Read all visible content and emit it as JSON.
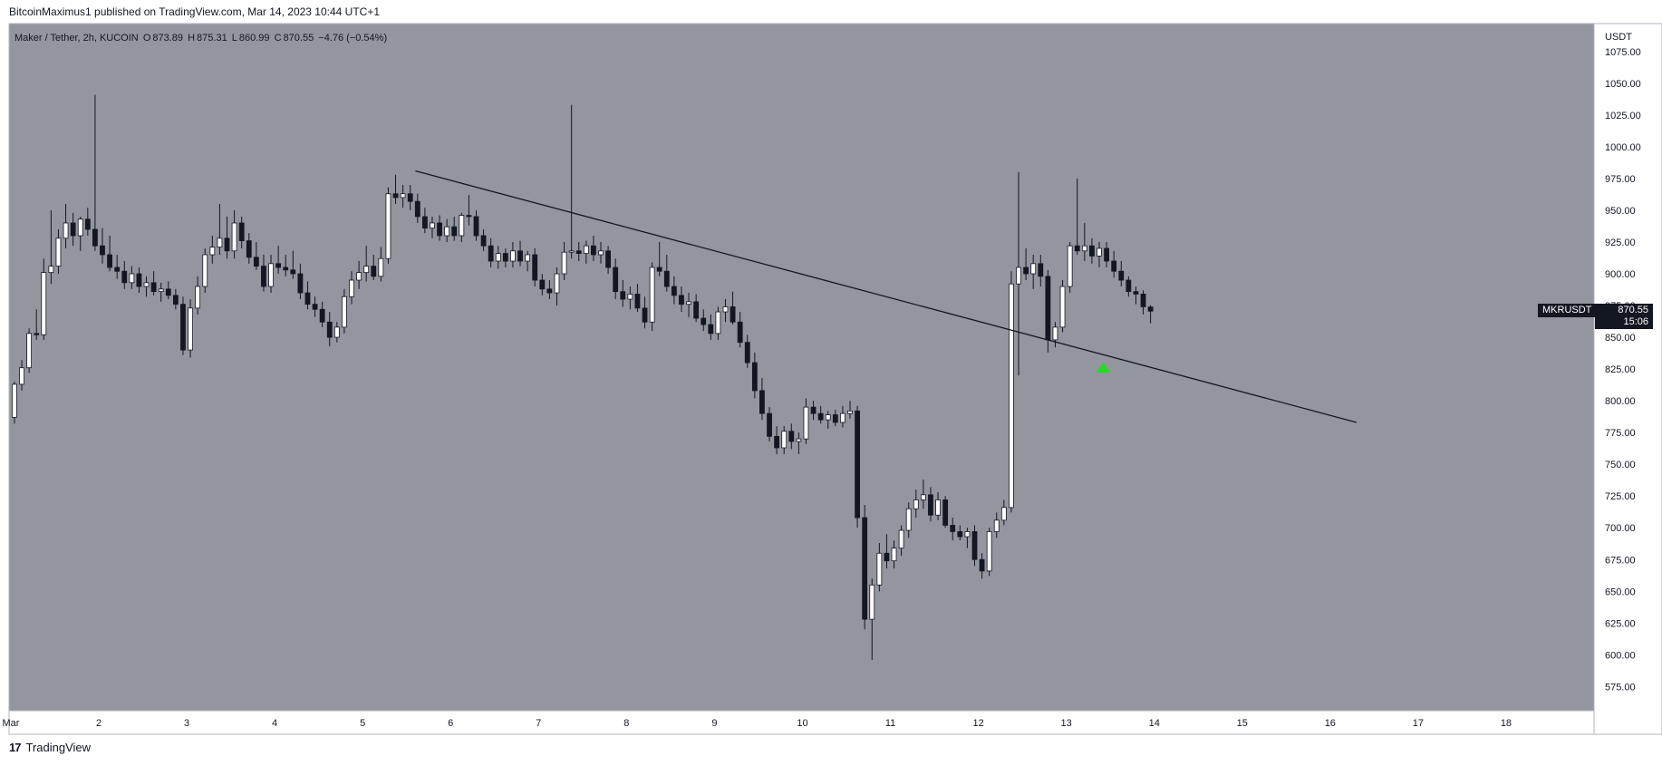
{
  "header": {
    "text": "BitcoinMaximus1 published on TradingView.com, Mar 14, 2023 10:44 UTC+1"
  },
  "footer": {
    "logo": "17",
    "brand": "TradingView"
  },
  "legend": {
    "symbol": "Maker / Tether, 2h, KUCOIN",
    "o_key": "O",
    "o_val": "873.89",
    "h_key": "H",
    "h_val": "875.31",
    "l_key": "L",
    "l_val": "860.99",
    "c_key": "C",
    "c_val": "870.55",
    "change": "−4.76 (−0.54%)"
  },
  "price_tag": {
    "symbol": "MKRUSDT",
    "price": "870.55",
    "countdown": "15:06"
  },
  "colors": {
    "pane_bg": "#93959f",
    "up_body": "#ffffff",
    "down_body": "#131722",
    "wick": "#131722",
    "trendline": "#131722",
    "arrow": "#22dd22",
    "axis_bg": "#ffffff",
    "axis_text": "#131722"
  },
  "chart_data": {
    "type": "candlestick",
    "currency": "USDT",
    "x_unit": "day of March 2023 (2h candles)",
    "xlim": [
      0.98,
      19.0
    ],
    "ylim": [
      556,
      1097
    ],
    "x_ticks": [
      {
        "x": 1,
        "label": "Mar"
      },
      {
        "x": 2,
        "label": "2"
      },
      {
        "x": 3,
        "label": "3"
      },
      {
        "x": 4,
        "label": "4"
      },
      {
        "x": 5,
        "label": "5"
      },
      {
        "x": 6,
        "label": "6"
      },
      {
        "x": 7,
        "label": "7"
      },
      {
        "x": 8,
        "label": "8"
      },
      {
        "x": 9,
        "label": "9"
      },
      {
        "x": 10,
        "label": "10"
      },
      {
        "x": 11,
        "label": "11"
      },
      {
        "x": 12,
        "label": "12"
      },
      {
        "x": 13,
        "label": "13"
      },
      {
        "x": 14,
        "label": "14"
      },
      {
        "x": 15,
        "label": "15"
      },
      {
        "x": 16,
        "label": "16"
      },
      {
        "x": 17,
        "label": "17"
      },
      {
        "x": 18,
        "label": "18"
      }
    ],
    "y_ticks": [
      "1075.00",
      "1050.00",
      "1025.00",
      "1000.00",
      "975.00",
      "950.00",
      "925.00",
      "900.00",
      "875.00",
      "850.00",
      "825.00",
      "800.00",
      "775.00",
      "750.00",
      "725.00",
      "700.00",
      "675.00",
      "650.00",
      "625.00",
      "600.00",
      "575.00"
    ],
    "y_tick_values": [
      1075,
      1050,
      1025,
      1000,
      975,
      950,
      925,
      900,
      875,
      850,
      825,
      800,
      775,
      750,
      725,
      700,
      675,
      650,
      625,
      600,
      575
    ],
    "candles": [
      {
        "o": 787,
        "h": 815,
        "l": 782,
        "c": 813
      },
      {
        "o": 813,
        "h": 832,
        "l": 808,
        "c": 826
      },
      {
        "o": 826,
        "h": 857,
        "l": 822,
        "c": 853
      },
      {
        "o": 853,
        "h": 872,
        "l": 848,
        "c": 852
      },
      {
        "o": 852,
        "h": 912,
        "l": 848,
        "c": 901
      },
      {
        "o": 901,
        "h": 950,
        "l": 892,
        "c": 906
      },
      {
        "o": 906,
        "h": 935,
        "l": 900,
        "c": 928
      },
      {
        "o": 928,
        "h": 955,
        "l": 920,
        "c": 940
      },
      {
        "o": 940,
        "h": 948,
        "l": 922,
        "c": 930
      },
      {
        "o": 930,
        "h": 945,
        "l": 918,
        "c": 943
      },
      {
        "o": 943,
        "h": 952,
        "l": 930,
        "c": 935
      },
      {
        "o": 935,
        "h": 1041,
        "l": 918,
        "c": 922
      },
      {
        "o": 922,
        "h": 936,
        "l": 908,
        "c": 915
      },
      {
        "o": 915,
        "h": 930,
        "l": 902,
        "c": 905
      },
      {
        "o": 905,
        "h": 915,
        "l": 896,
        "c": 902
      },
      {
        "o": 902,
        "h": 910,
        "l": 888,
        "c": 893
      },
      {
        "o": 893,
        "h": 906,
        "l": 888,
        "c": 900
      },
      {
        "o": 900,
        "h": 905,
        "l": 885,
        "c": 890
      },
      {
        "o": 890,
        "h": 898,
        "l": 882,
        "c": 893
      },
      {
        "o": 893,
        "h": 902,
        "l": 883,
        "c": 886
      },
      {
        "o": 886,
        "h": 893,
        "l": 878,
        "c": 888
      },
      {
        "o": 888,
        "h": 894,
        "l": 880,
        "c": 883
      },
      {
        "o": 883,
        "h": 888,
        "l": 872,
        "c": 876
      },
      {
        "o": 876,
        "h": 882,
        "l": 836,
        "c": 840
      },
      {
        "o": 840,
        "h": 880,
        "l": 834,
        "c": 873
      },
      {
        "o": 873,
        "h": 898,
        "l": 868,
        "c": 890
      },
      {
        "o": 890,
        "h": 920,
        "l": 885,
        "c": 915
      },
      {
        "o": 915,
        "h": 930,
        "l": 908,
        "c": 921
      },
      {
        "o": 921,
        "h": 955,
        "l": 915,
        "c": 928
      },
      {
        "o": 928,
        "h": 945,
        "l": 912,
        "c": 918
      },
      {
        "o": 918,
        "h": 950,
        "l": 912,
        "c": 940
      },
      {
        "o": 940,
        "h": 945,
        "l": 920,
        "c": 926
      },
      {
        "o": 926,
        "h": 932,
        "l": 908,
        "c": 913
      },
      {
        "o": 913,
        "h": 925,
        "l": 903,
        "c": 906
      },
      {
        "o": 906,
        "h": 915,
        "l": 886,
        "c": 890
      },
      {
        "o": 890,
        "h": 915,
        "l": 885,
        "c": 908
      },
      {
        "o": 908,
        "h": 922,
        "l": 900,
        "c": 905
      },
      {
        "o": 905,
        "h": 915,
        "l": 898,
        "c": 903
      },
      {
        "o": 903,
        "h": 918,
        "l": 896,
        "c": 900
      },
      {
        "o": 900,
        "h": 908,
        "l": 880,
        "c": 885
      },
      {
        "o": 885,
        "h": 894,
        "l": 872,
        "c": 876
      },
      {
        "o": 876,
        "h": 882,
        "l": 866,
        "c": 872
      },
      {
        "o": 872,
        "h": 878,
        "l": 858,
        "c": 862
      },
      {
        "o": 862,
        "h": 870,
        "l": 843,
        "c": 850
      },
      {
        "o": 850,
        "h": 862,
        "l": 846,
        "c": 858
      },
      {
        "o": 858,
        "h": 888,
        "l": 853,
        "c": 882
      },
      {
        "o": 882,
        "h": 902,
        "l": 876,
        "c": 895
      },
      {
        "o": 895,
        "h": 910,
        "l": 888,
        "c": 901
      },
      {
        "o": 901,
        "h": 922,
        "l": 894,
        "c": 906
      },
      {
        "o": 906,
        "h": 915,
        "l": 895,
        "c": 898
      },
      {
        "o": 898,
        "h": 921,
        "l": 894,
        "c": 912
      },
      {
        "o": 912,
        "h": 968,
        "l": 908,
        "c": 963
      },
      {
        "o": 963,
        "h": 978,
        "l": 955,
        "c": 960
      },
      {
        "o": 960,
        "h": 970,
        "l": 952,
        "c": 963
      },
      {
        "o": 963,
        "h": 970,
        "l": 950,
        "c": 957
      },
      {
        "o": 957,
        "h": 963,
        "l": 940,
        "c": 945
      },
      {
        "o": 945,
        "h": 952,
        "l": 932,
        "c": 936
      },
      {
        "o": 936,
        "h": 945,
        "l": 928,
        "c": 940
      },
      {
        "o": 940,
        "h": 946,
        "l": 926,
        "c": 930
      },
      {
        "o": 930,
        "h": 943,
        "l": 925,
        "c": 937
      },
      {
        "o": 937,
        "h": 945,
        "l": 926,
        "c": 930
      },
      {
        "o": 930,
        "h": 948,
        "l": 925,
        "c": 946
      },
      {
        "o": 946,
        "h": 962,
        "l": 938,
        "c": 945
      },
      {
        "o": 945,
        "h": 950,
        "l": 926,
        "c": 930
      },
      {
        "o": 930,
        "h": 935,
        "l": 918,
        "c": 922
      },
      {
        "o": 922,
        "h": 928,
        "l": 905,
        "c": 910
      },
      {
        "o": 910,
        "h": 922,
        "l": 904,
        "c": 916
      },
      {
        "o": 916,
        "h": 920,
        "l": 905,
        "c": 910
      },
      {
        "o": 910,
        "h": 925,
        "l": 905,
        "c": 918
      },
      {
        "o": 918,
        "h": 926,
        "l": 906,
        "c": 910
      },
      {
        "o": 910,
        "h": 918,
        "l": 902,
        "c": 915
      },
      {
        "o": 915,
        "h": 920,
        "l": 890,
        "c": 895
      },
      {
        "o": 895,
        "h": 900,
        "l": 883,
        "c": 888
      },
      {
        "o": 888,
        "h": 895,
        "l": 880,
        "c": 885
      },
      {
        "o": 885,
        "h": 905,
        "l": 875,
        "c": 900
      },
      {
        "o": 900,
        "h": 925,
        "l": 895,
        "c": 917
      },
      {
        "o": 917,
        "h": 1033,
        "l": 912,
        "c": 918
      },
      {
        "o": 918,
        "h": 925,
        "l": 910,
        "c": 916
      },
      {
        "o": 916,
        "h": 926,
        "l": 908,
        "c": 922
      },
      {
        "o": 922,
        "h": 930,
        "l": 910,
        "c": 915
      },
      {
        "o": 915,
        "h": 925,
        "l": 908,
        "c": 918
      },
      {
        "o": 918,
        "h": 922,
        "l": 900,
        "c": 905
      },
      {
        "o": 905,
        "h": 912,
        "l": 880,
        "c": 886
      },
      {
        "o": 886,
        "h": 895,
        "l": 874,
        "c": 880
      },
      {
        "o": 880,
        "h": 890,
        "l": 872,
        "c": 884
      },
      {
        "o": 884,
        "h": 892,
        "l": 870,
        "c": 873
      },
      {
        "o": 873,
        "h": 882,
        "l": 857,
        "c": 862
      },
      {
        "o": 862,
        "h": 909,
        "l": 855,
        "c": 905
      },
      {
        "o": 905,
        "h": 925,
        "l": 898,
        "c": 902
      },
      {
        "o": 902,
        "h": 915,
        "l": 886,
        "c": 890
      },
      {
        "o": 890,
        "h": 898,
        "l": 876,
        "c": 883
      },
      {
        "o": 883,
        "h": 890,
        "l": 870,
        "c": 876
      },
      {
        "o": 876,
        "h": 885,
        "l": 866,
        "c": 878
      },
      {
        "o": 878,
        "h": 884,
        "l": 862,
        "c": 865
      },
      {
        "o": 865,
        "h": 872,
        "l": 855,
        "c": 860
      },
      {
        "o": 860,
        "h": 868,
        "l": 848,
        "c": 853
      },
      {
        "o": 853,
        "h": 874,
        "l": 848,
        "c": 870
      },
      {
        "o": 870,
        "h": 880,
        "l": 862,
        "c": 874
      },
      {
        "o": 874,
        "h": 886,
        "l": 860,
        "c": 862
      },
      {
        "o": 862,
        "h": 870,
        "l": 842,
        "c": 846
      },
      {
        "o": 846,
        "h": 852,
        "l": 826,
        "c": 830
      },
      {
        "o": 830,
        "h": 838,
        "l": 802,
        "c": 808
      },
      {
        "o": 808,
        "h": 818,
        "l": 785,
        "c": 790
      },
      {
        "o": 790,
        "h": 795,
        "l": 768,
        "c": 772
      },
      {
        "o": 772,
        "h": 780,
        "l": 758,
        "c": 763
      },
      {
        "o": 763,
        "h": 780,
        "l": 758,
        "c": 776
      },
      {
        "o": 776,
        "h": 782,
        "l": 762,
        "c": 768
      },
      {
        "o": 768,
        "h": 775,
        "l": 758,
        "c": 770
      },
      {
        "o": 770,
        "h": 802,
        "l": 766,
        "c": 795
      },
      {
        "o": 795,
        "h": 800,
        "l": 785,
        "c": 790
      },
      {
        "o": 790,
        "h": 796,
        "l": 782,
        "c": 785
      },
      {
        "o": 785,
        "h": 792,
        "l": 778,
        "c": 789
      },
      {
        "o": 789,
        "h": 793,
        "l": 780,
        "c": 783
      },
      {
        "o": 783,
        "h": 796,
        "l": 779,
        "c": 790
      },
      {
        "o": 790,
        "h": 800,
        "l": 786,
        "c": 792
      },
      {
        "o": 792,
        "h": 796,
        "l": 700,
        "c": 708
      },
      {
        "o": 708,
        "h": 718,
        "l": 620,
        "c": 628
      },
      {
        "o": 628,
        "h": 660,
        "l": 596,
        "c": 655
      },
      {
        "o": 655,
        "h": 688,
        "l": 650,
        "c": 680
      },
      {
        "o": 680,
        "h": 695,
        "l": 668,
        "c": 674
      },
      {
        "o": 674,
        "h": 690,
        "l": 668,
        "c": 684
      },
      {
        "o": 684,
        "h": 702,
        "l": 678,
        "c": 698
      },
      {
        "o": 698,
        "h": 720,
        "l": 692,
        "c": 715
      },
      {
        "o": 715,
        "h": 730,
        "l": 708,
        "c": 722
      },
      {
        "o": 722,
        "h": 738,
        "l": 715,
        "c": 726
      },
      {
        "o": 726,
        "h": 732,
        "l": 705,
        "c": 710
      },
      {
        "o": 710,
        "h": 728,
        "l": 706,
        "c": 722
      },
      {
        "o": 722,
        "h": 725,
        "l": 700,
        "c": 702
      },
      {
        "o": 702,
        "h": 708,
        "l": 690,
        "c": 697
      },
      {
        "o": 697,
        "h": 702,
        "l": 690,
        "c": 693
      },
      {
        "o": 693,
        "h": 700,
        "l": 684,
        "c": 697
      },
      {
        "o": 697,
        "h": 702,
        "l": 670,
        "c": 675
      },
      {
        "o": 675,
        "h": 680,
        "l": 660,
        "c": 666
      },
      {
        "o": 666,
        "h": 700,
        "l": 662,
        "c": 697
      },
      {
        "o": 697,
        "h": 712,
        "l": 692,
        "c": 706
      },
      {
        "o": 706,
        "h": 722,
        "l": 702,
        "c": 716
      },
      {
        "o": 716,
        "h": 902,
        "l": 712,
        "c": 892
      },
      {
        "o": 892,
        "h": 980,
        "l": 820,
        "c": 905
      },
      {
        "o": 905,
        "h": 920,
        "l": 895,
        "c": 900
      },
      {
        "o": 900,
        "h": 915,
        "l": 888,
        "c": 908
      },
      {
        "o": 908,
        "h": 915,
        "l": 890,
        "c": 898
      },
      {
        "o": 898,
        "h": 903,
        "l": 838,
        "c": 848
      },
      {
        "o": 848,
        "h": 862,
        "l": 842,
        "c": 858
      },
      {
        "o": 858,
        "h": 895,
        "l": 854,
        "c": 890
      },
      {
        "o": 890,
        "h": 925,
        "l": 885,
        "c": 922
      },
      {
        "o": 922,
        "h": 975,
        "l": 915,
        "c": 918
      },
      {
        "o": 918,
        "h": 940,
        "l": 910,
        "c": 922
      },
      {
        "o": 922,
        "h": 928,
        "l": 908,
        "c": 914
      },
      {
        "o": 914,
        "h": 925,
        "l": 905,
        "c": 920
      },
      {
        "o": 920,
        "h": 925,
        "l": 905,
        "c": 910
      },
      {
        "o": 910,
        "h": 918,
        "l": 897,
        "c": 902
      },
      {
        "o": 902,
        "h": 910,
        "l": 890,
        "c": 895
      },
      {
        "o": 895,
        "h": 898,
        "l": 882,
        "c": 886
      },
      {
        "o": 886,
        "h": 890,
        "l": 876,
        "c": 884
      },
      {
        "o": 884,
        "h": 887,
        "l": 868,
        "c": 874
      },
      {
        "o": 873.89,
        "h": 875.31,
        "l": 860.99,
        "c": 870.55
      }
    ],
    "trendline": {
      "x1": 5.6,
      "y1": 981,
      "x2": 16.3,
      "y2": 783
    },
    "marker": {
      "type": "arrow-up",
      "x": 13.42,
      "y": 825
    },
    "last_price": 870.55
  }
}
